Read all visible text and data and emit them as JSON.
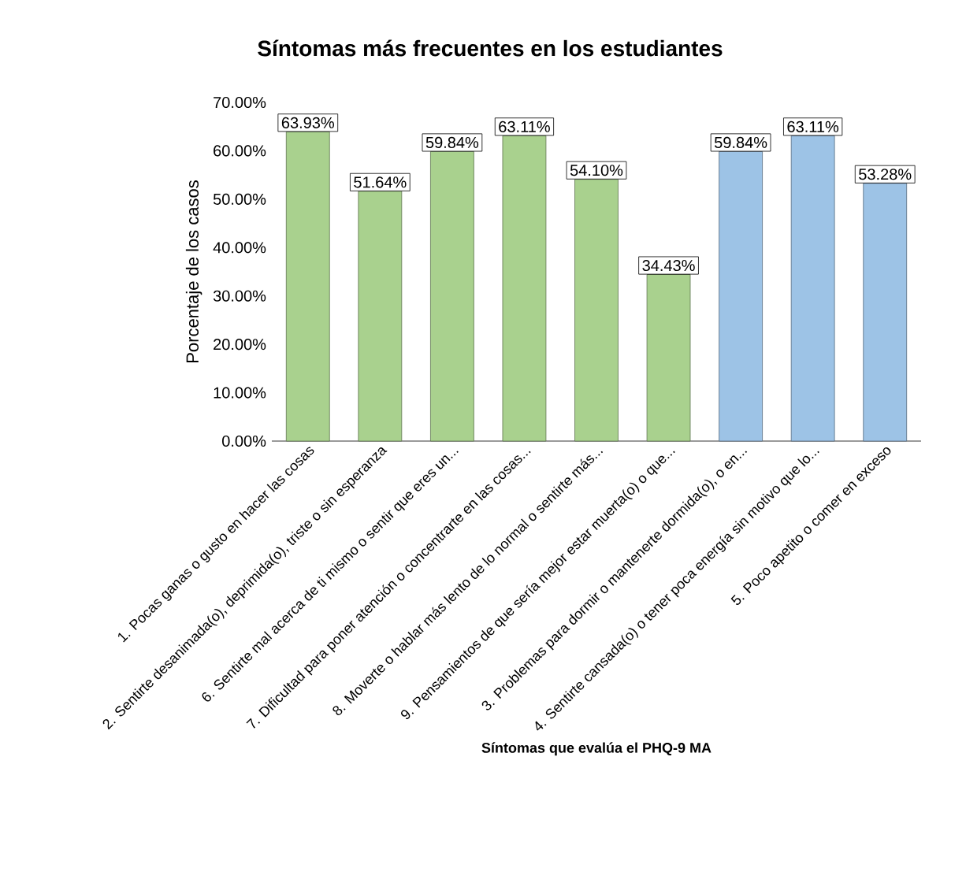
{
  "chart_data": {
    "type": "bar",
    "title": "Síntomas más frecuentes en los estudiantes",
    "xlabel": "Síntomas que evalúa el PHQ-9 MA",
    "ylabel": "Porcentaje de los casos",
    "categories": [
      "1. Pocas ganas o gusto en hacer las cosas",
      "2. Sentirte desanimada(o), deprimida(o), triste o sin esperanza",
      "6. Sentirte mal acerca de ti mismo o sentir que eres un...",
      "7. Dificultad para poner atención o concentrarte en las cosas...",
      "8. Moverte o hablar más lento de lo normal o sentirte más...",
      "9. Pensamientos de que sería mejor estar muerta(o) o que...",
      "3. Problemas para dormir o mantenerte dormida(o), o en...",
      "4. Sentirte cansada(o) o tener poca energía sin motivo que lo...",
      "5. Poco apetito o comer en exceso"
    ],
    "values": [
      63.93,
      51.64,
      59.84,
      63.11,
      54.1,
      34.43,
      59.84,
      63.11,
      53.28
    ],
    "value_labels": [
      "63.93%",
      "51.64%",
      "59.84%",
      "63.11%",
      "54.10%",
      "34.43%",
      "59.84%",
      "63.11%",
      "53.28%"
    ],
    "colors": [
      "#a9d18e",
      "#a9d18e",
      "#a9d18e",
      "#a9d18e",
      "#a9d18e",
      "#a9d18e",
      "#9dc3e6",
      "#9dc3e6",
      "#9dc3e6"
    ],
    "ylim": [
      0,
      70
    ],
    "yticks": [
      {
        "value": 0,
        "label": "0.00%"
      },
      {
        "value": 10,
        "label": "10.00%"
      },
      {
        "value": 20,
        "label": "20.00%"
      },
      {
        "value": 30,
        "label": "30.00%"
      },
      {
        "value": 40,
        "label": "40.00%"
      },
      {
        "value": 50,
        "label": "50.00%"
      },
      {
        "value": 60,
        "label": "60.00%"
      },
      {
        "value": 70,
        "label": "70.00%"
      }
    ]
  }
}
